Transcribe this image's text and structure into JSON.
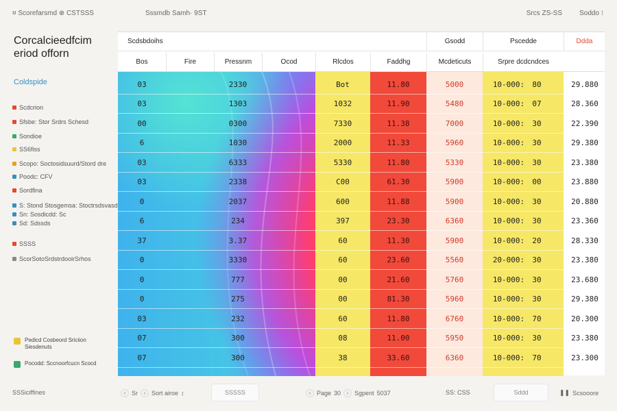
{
  "topbar": {
    "left": "¤ Scorefarsmd  ⊕  CSTSSS",
    "center": "Sssmdb Samh· 9ST",
    "right": "Srcs ZS-SS",
    "far_right": "Soddo ⁝"
  },
  "sidebar": {
    "title_line1": "Corcalcieedfcim",
    "title_line2": "eriod offorn",
    "section": "Coldspide",
    "items": [
      {
        "label": "Scdcrion",
        "color": "#e24a33"
      },
      {
        "label": "Sfsbe: Stor Srdrs Schesd",
        "color": "#e24a33"
      },
      {
        "label": "Sondioe",
        "color": "#3aa86b"
      },
      {
        "label": "SS6fiss",
        "color": "#e8c53a"
      },
      {
        "label": "Scopo: Soctosidsuurd/Stord dre",
        "color": "#e8a11a"
      },
      {
        "label": "Poodc: CFV",
        "color": "#3a8ebc"
      },
      {
        "label": "Sordfina",
        "color": "#e24a33"
      },
      {
        "label": "S: Stond Stosgemsa: Stoctrsdsvasd",
        "color": "#3a8ebc"
      },
      {
        "label": "Sn: Sosdicdd: Sc",
        "color": "#3a8ebc"
      },
      {
        "label": "Sd: Sdssds",
        "color": "#3a8ebc"
      },
      {
        "label": "SSSS",
        "color": "#e24a33"
      },
      {
        "label": "ScorSotoSrdstrdooirSrhos",
        "color": "#888888"
      }
    ],
    "legend": [
      {
        "line1": "Pedicd Cosbeord Sriciion",
        "line2": "Siesdenuts",
        "color": "#e8c53a"
      },
      {
        "line1": "Pocodd: Sccnoorfcucn Scocd",
        "line2": "",
        "color": "#3aa86b"
      }
    ]
  },
  "header_group": {
    "group1": "Scdsbdoihs",
    "group2": "Gsodd",
    "group3": "Pscedde",
    "group4": "Ddda"
  },
  "columns": [
    "Bos",
    "Fire",
    "Pressnm",
    "Ocod",
    "Rlcdos",
    "Faddhg",
    "Mcdeticuts",
    "Srpre dcdcndces"
  ],
  "rows": [
    {
      "c1": "03",
      "c3": "2330",
      "c5": "Bot",
      "c6": "11.80",
      "c7": "5000",
      "c8a": "10-000:",
      "c8b": "80",
      "c9": "29.880"
    },
    {
      "c1": "03",
      "c3": "1303",
      "c5": "1032",
      "c6": "11.90",
      "c7": "5480",
      "c8a": "10-000:",
      "c8b": "07",
      "c9": "28.360"
    },
    {
      "c1": "00",
      "c3": "0300",
      "c5": "7330",
      "c6": "11.38",
      "c7": "7000",
      "c8a": "10-000:",
      "c8b": "30",
      "c9": "22.390"
    },
    {
      "c1": "6",
      "c3": "1030",
      "c5": "2000",
      "c6": "11.33",
      "c7": "5960",
      "c8a": "10-000:",
      "c8b": "30",
      "c9": "29.380"
    },
    {
      "c1": "03",
      "c3": "6333",
      "c5": "5330",
      "c6": "11.80",
      "c7": "5330",
      "c8a": "10-000:",
      "c8b": "30",
      "c9": "23.380"
    },
    {
      "c1": "03",
      "c3": "2338",
      "c5": "C00",
      "c6": "61.30",
      "c7": "5900",
      "c8a": "10-000:",
      "c8b": "00",
      "c9": "23.880"
    },
    {
      "c1": "0",
      "c3": "2037",
      "c5": "600",
      "c6": "11.88",
      "c7": "5900",
      "c8a": "10-000:",
      "c8b": "30",
      "c9": "20.880"
    },
    {
      "c1": "6",
      "c3": "234",
      "c5": "397",
      "c6": "23.30",
      "c7": "6360",
      "c8a": "10-000:",
      "c8b": "30",
      "c9": "23.360"
    },
    {
      "c1": "37",
      "c3": "3.37",
      "c5": "60",
      "c6": "11.30",
      "c7": "5900",
      "c8a": "10-000:",
      "c8b": "20",
      "c9": "28.330"
    },
    {
      "c1": "0",
      "c3": "3330",
      "c5": "60",
      "c6": "23.60",
      "c7": "5560",
      "c8a": "20-000:",
      "c8b": "30",
      "c9": "23.380"
    },
    {
      "c1": "0",
      "c3": "777",
      "c5": "00",
      "c6": "21.60",
      "c7": "5760",
      "c8a": "10-000:",
      "c8b": "30",
      "c9": "23.680"
    },
    {
      "c1": "0",
      "c3": "275",
      "c5": "00",
      "c6": "81.30",
      "c7": "5960",
      "c8a": "10-000:",
      "c8b": "30",
      "c9": "29.380"
    },
    {
      "c1": "03",
      "c3": "232",
      "c5": "60",
      "c6": "11.80",
      "c7": "6760",
      "c8a": "10-000:",
      "c8b": "70",
      "c9": "20.300"
    },
    {
      "c1": "07",
      "c3": "300",
      "c5": "08",
      "c6": "11.00",
      "c7": "5950",
      "c8a": "10-000:",
      "c8b": "30",
      "c9": "23.380"
    },
    {
      "c1": "07",
      "c3": "300",
      "c5": "38",
      "c6": "33.60",
      "c7": "6360",
      "c8a": "10-000:",
      "c8b": "70",
      "c9": "23.300"
    }
  ],
  "footer": {
    "left": "SSSiciffines",
    "pager_a": "Sr",
    "pager_b": "Sort airoe",
    "btn1": "SSSSS",
    "page_label": "Page",
    "page_num": "30",
    "next_label": "Sgpent",
    "next_num": "5037",
    "goto": "SS: CSS",
    "btn2": "Sddd",
    "right": "Scsooore"
  },
  "colors": {
    "yellow": "#f6e766",
    "red": "#f1493a",
    "peach": "#fde9de",
    "accent": "#3a8ebc"
  }
}
